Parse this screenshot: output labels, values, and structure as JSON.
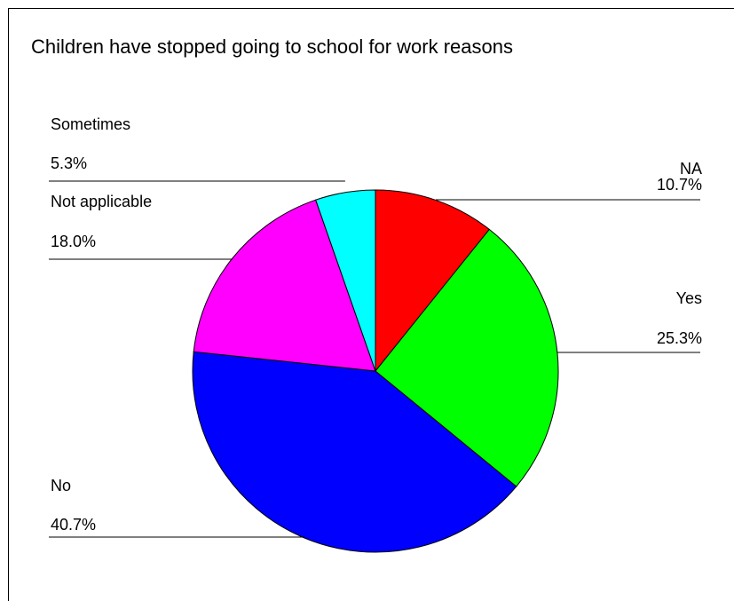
{
  "chart_data": {
    "type": "pie",
    "title": "Children have stopped going to school for work reasons",
    "slices": [
      {
        "label": "NA",
        "value": 10.7,
        "value_label": "10.7%",
        "color": "#ff0000"
      },
      {
        "label": "Yes",
        "value": 25.3,
        "value_label": "25.3%",
        "color": "#00ff00"
      },
      {
        "label": "No",
        "value": 40.7,
        "value_label": "40.7%",
        "color": "#0000ff"
      },
      {
        "label": "Not applicable",
        "value": 18.0,
        "value_label": "18.0%",
        "color": "#ff00ff"
      },
      {
        "label": "Sometimes",
        "value": 5.3,
        "value_label": "5.3%",
        "color": "#00ffff"
      }
    ],
    "start_angle": "12 o'clock",
    "direction": "clockwise",
    "legend": "none"
  }
}
